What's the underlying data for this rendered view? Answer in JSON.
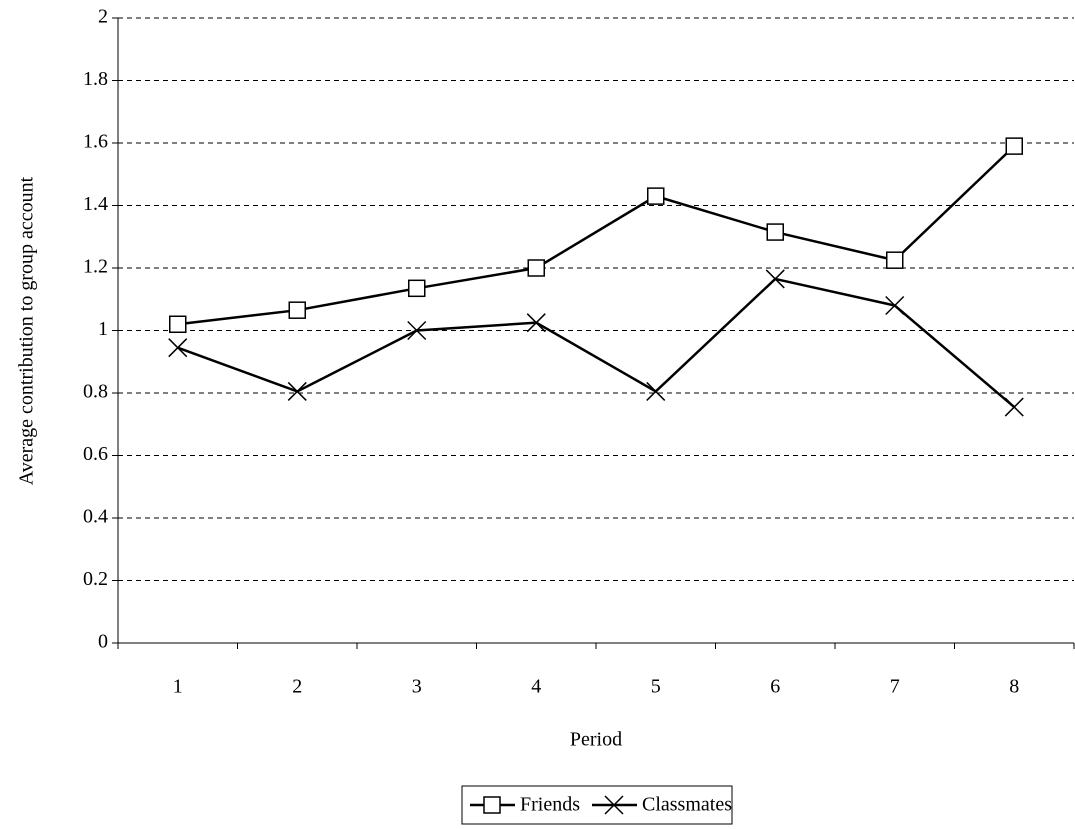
{
  "chart_data": {
    "type": "line",
    "x_label": "Period",
    "y_label": "Average contribution to group account",
    "categories": [
      "1",
      "2",
      "3",
      "4",
      "5",
      "6",
      "7",
      "8"
    ],
    "series": [
      {
        "name": "Friends",
        "color": "#000000",
        "marker": "square",
        "values": [
          1.02,
          1.065,
          1.135,
          1.2,
          1.43,
          1.315,
          1.225,
          1.59
        ]
      },
      {
        "name": "Classmates",
        "color": "#000000",
        "marker": "x",
        "values": [
          0.945,
          0.805,
          1.0,
          1.025,
          0.805,
          1.165,
          1.08,
          0.755
        ]
      }
    ],
    "ylim": [
      0,
      2
    ],
    "yticks": [
      0,
      0.2,
      0.4,
      0.6,
      0.8,
      1,
      1.2,
      1.4,
      1.6,
      1.8,
      2
    ],
    "grid": true,
    "legend": "bottom"
  }
}
